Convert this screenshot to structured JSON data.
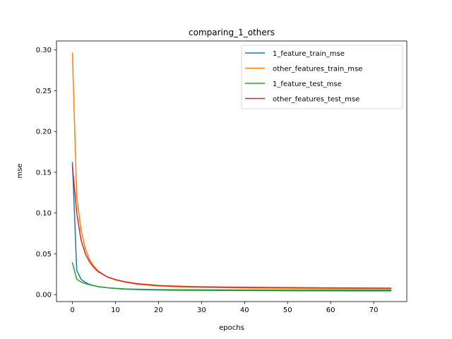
{
  "chart_data": {
    "type": "line",
    "title": "comparing_1_others",
    "xlabel": "epochs",
    "ylabel": "mse",
    "xlim": [
      -3.7,
      77.7
    ],
    "ylim": [
      -0.0085,
      0.311
    ],
    "xticks": [
      0,
      10,
      20,
      30,
      40,
      50,
      60,
      70
    ],
    "xtick_labels": [
      "0",
      "10",
      "20",
      "30",
      "40",
      "50",
      "60",
      "70"
    ],
    "yticks": [
      0.0,
      0.05,
      0.1,
      0.15,
      0.2,
      0.25,
      0.3
    ],
    "ytick_labels": [
      "0.00",
      "0.05",
      "0.10",
      "0.15",
      "0.20",
      "0.25",
      "0.30"
    ],
    "grid": false,
    "legend_position": "upper-right",
    "series": [
      {
        "name": "1_feature_train_mse",
        "color": "#1f77b4",
        "x": [
          0,
          1,
          2,
          3,
          4,
          5,
          6,
          8,
          10,
          12,
          15,
          20,
          25,
          30,
          40,
          50,
          60,
          70,
          74
        ],
        "y": [
          0.162,
          0.03,
          0.019,
          0.015,
          0.0125,
          0.011,
          0.0098,
          0.0085,
          0.0075,
          0.0068,
          0.0062,
          0.0057,
          0.0054,
          0.0052,
          0.005,
          0.0048,
          0.0047,
          0.0046,
          0.0046
        ]
      },
      {
        "name": "other_features_train_mse",
        "color": "#ff7f0e",
        "x": [
          0,
          1,
          2,
          3,
          4,
          5,
          6,
          8,
          10,
          12,
          15,
          20,
          25,
          30,
          40,
          50,
          60,
          70,
          74
        ],
        "y": [
          0.296,
          0.12,
          0.08,
          0.056,
          0.043,
          0.035,
          0.029,
          0.022,
          0.018,
          0.0155,
          0.0128,
          0.0105,
          0.0095,
          0.009,
          0.0082,
          0.0078,
          0.0075,
          0.0073,
          0.0072
        ]
      },
      {
        "name": "1_feature_test_mse",
        "color": "#2ca02c",
        "x": [
          0,
          1,
          2,
          3,
          4,
          5,
          6,
          8,
          10,
          12,
          15,
          20,
          25,
          30,
          40,
          50,
          60,
          70,
          74
        ],
        "y": [
          0.039,
          0.019,
          0.0155,
          0.0135,
          0.012,
          0.011,
          0.0098,
          0.0085,
          0.0077,
          0.0071,
          0.0066,
          0.0062,
          0.006,
          0.0059,
          0.0058,
          0.0057,
          0.0057,
          0.0056,
          0.0056
        ]
      },
      {
        "name": "other_features_test_mse",
        "color": "#d62728",
        "x": [
          0,
          1,
          2,
          3,
          4,
          5,
          6,
          8,
          10,
          12,
          15,
          20,
          25,
          30,
          40,
          50,
          60,
          70,
          74
        ],
        "y": [
          0.158,
          0.1,
          0.067,
          0.05,
          0.04,
          0.033,
          0.028,
          0.022,
          0.0185,
          0.016,
          0.0135,
          0.0112,
          0.0102,
          0.0096,
          0.009,
          0.0086,
          0.0083,
          0.0081,
          0.008
        ]
      }
    ]
  }
}
